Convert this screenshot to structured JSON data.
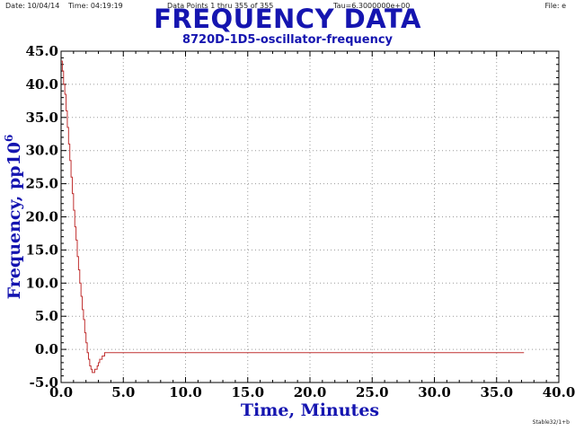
{
  "header": {
    "date": "Date: 10/04/14",
    "time": "Time: 04:19:19",
    "points": "Data Points 1 thru 355 of 355",
    "tau": "Tau=6.3000000e+00",
    "file": "File: e"
  },
  "footer": {
    "tag": "Stable32/1+b"
  },
  "colors": {
    "title": "#1515b0",
    "line": "#c03030",
    "grid": "#9a9a9a"
  },
  "chart_data": {
    "type": "line",
    "title": "FREQUENCY DATA",
    "subtitle": "8720D-1D5-oscillator-frequency",
    "xlabel": "Time, Minutes",
    "ylabel_main": "Frequency, pp10",
    "ylabel_sup": "6",
    "xlim": [
      0,
      40
    ],
    "ylim": [
      -5,
      45
    ],
    "xticks": [
      "0.0",
      "5.0",
      "10.0",
      "15.0",
      "20.0",
      "25.0",
      "30.0",
      "35.0",
      "40.0"
    ],
    "yticks": [
      "-5.0",
      "0.0",
      "5.0",
      "10.0",
      "15.0",
      "20.0",
      "25.0",
      "30.0",
      "35.0",
      "40.0",
      "45.0"
    ],
    "grid": true,
    "step": true,
    "series": [
      {
        "x": [
          0.0,
          0.1,
          0.2,
          0.3,
          0.4,
          0.5,
          0.6,
          0.7,
          0.8,
          0.9,
          1.0,
          1.1,
          1.2,
          1.3,
          1.4,
          1.5,
          1.6,
          1.7,
          1.8,
          1.9,
          2.0,
          2.1,
          2.2,
          2.3,
          2.4,
          2.5,
          2.6,
          2.7,
          2.8,
          2.9,
          3.0,
          3.1,
          3.2,
          3.3,
          3.4,
          3.5,
          3.6,
          3.7,
          3.8,
          3.9,
          4.0,
          10.0,
          20.0,
          30.0,
          37.2
        ],
        "y": [
          43.5,
          42.0,
          40.0,
          38.5,
          36.0,
          33.5,
          31.0,
          28.5,
          26.0,
          23.5,
          21.0,
          18.5,
          16.5,
          14.0,
          12.0,
          10.0,
          8.0,
          6.0,
          4.5,
          2.5,
          1.0,
          -0.5,
          -1.5,
          -2.5,
          -3.0,
          -3.5,
          -3.5,
          -3.0,
          -3.0,
          -2.5,
          -2.0,
          -1.5,
          -1.5,
          -1.0,
          -1.0,
          -0.5,
          -0.5,
          -0.5,
          -0.5,
          -0.5,
          -0.5,
          -0.5,
          -0.5,
          -0.5,
          -0.5
        ]
      }
    ]
  }
}
